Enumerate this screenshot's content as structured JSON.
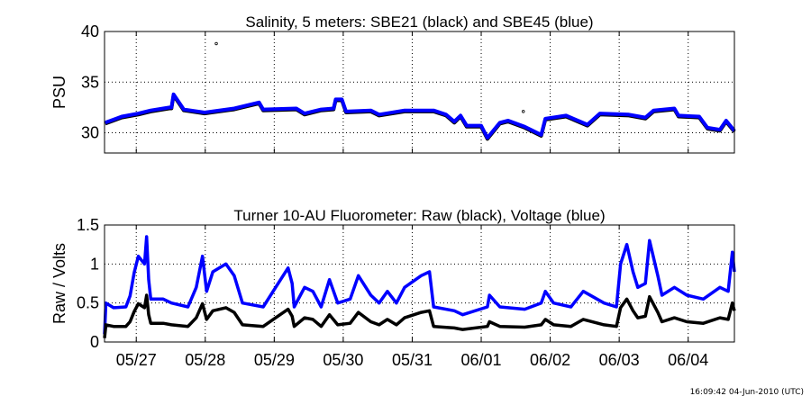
{
  "timestamp": "16:09:42 04-Jun-2010 (UTC)",
  "colors": {
    "black": "#000000",
    "blue": "#0000ff",
    "grid": "#000000"
  },
  "chart_data": [
    {
      "type": "line",
      "title": "Salinity, 5 meters: SBE21 (black) and SBE45 (blue)",
      "ylabel": "PSU",
      "xlabel": "",
      "x_units": "days since 05/27 00:00",
      "xlim": [
        -0.46,
        8.67
      ],
      "ylim": [
        28,
        40
      ],
      "yticks": [
        30,
        35,
        40
      ],
      "ytick_labels": [
        "30",
        "35",
        "40"
      ],
      "xticks": [
        0,
        1,
        2,
        3,
        4,
        5,
        6,
        7,
        8
      ],
      "grid": true,
      "x": [
        -0.45,
        -0.21,
        0.03,
        0.21,
        0.48,
        0.51,
        0.54,
        0.69,
        0.99,
        1.42,
        1.78,
        1.84,
        2.32,
        2.44,
        2.68,
        2.86,
        2.89,
        2.98,
        3.04,
        3.4,
        3.52,
        3.89,
        4.31,
        4.49,
        4.61,
        4.7,
        4.79,
        5.0,
        5.09,
        5.27,
        5.39,
        5.63,
        5.87,
        5.93,
        6.23,
        6.54,
        6.72,
        7.14,
        7.38,
        7.5,
        7.8,
        7.86,
        8.16,
        8.28,
        8.46,
        8.55,
        8.67
      ],
      "series": [
        {
          "name": "SBE21",
          "color": "#000000",
          "values": [
            30.9,
            31.5,
            31.8,
            32.1,
            32.4,
            32.4,
            33.7,
            32.2,
            31.9,
            32.3,
            32.9,
            32.2,
            32.3,
            31.8,
            32.2,
            32.3,
            33.2,
            33.2,
            32.0,
            32.1,
            31.7,
            32.1,
            32.1,
            31.7,
            31.0,
            31.6,
            30.6,
            30.6,
            29.4,
            30.9,
            31.1,
            30.5,
            29.7,
            31.3,
            31.6,
            30.7,
            31.8,
            31.7,
            31.4,
            32.1,
            32.3,
            31.6,
            31.5,
            30.4,
            30.2,
            31.1,
            30.1
          ],
          "outliers": [
            [
              1.16,
              38.8
            ],
            [
              5.61,
              32.1
            ]
          ]
        },
        {
          "name": "SBE45",
          "color": "#0000ff",
          "values": [
            31.0,
            31.6,
            31.9,
            32.2,
            32.5,
            32.5,
            33.8,
            32.3,
            32.0,
            32.4,
            33.0,
            32.3,
            32.4,
            31.9,
            32.3,
            32.4,
            33.3,
            33.3,
            32.1,
            32.2,
            31.8,
            32.2,
            32.2,
            31.8,
            31.1,
            31.7,
            30.7,
            30.7,
            29.5,
            31.0,
            31.2,
            30.6,
            29.8,
            31.4,
            31.7,
            30.8,
            31.9,
            31.8,
            31.5,
            32.2,
            32.4,
            31.7,
            31.6,
            30.5,
            30.3,
            31.2,
            30.2
          ]
        }
      ]
    },
    {
      "type": "line",
      "title": "Turner 10-AU Fluorometer: Raw (black), Voltage (blue)",
      "ylabel": "Raw / Volts",
      "xlabel": "",
      "x_units": "days since 05/27 00:00",
      "xlim": [
        -0.46,
        8.67
      ],
      "ylim": [
        0,
        1.5
      ],
      "yticks": [
        0,
        0.5,
        1,
        1.5
      ],
      "ytick_labels": [
        "0",
        "0.5",
        "1",
        "1.5"
      ],
      "xticks": [
        0,
        1,
        2,
        3,
        4,
        5,
        6,
        7,
        8
      ],
      "xtick_labels": [
        "05/27",
        "05/28",
        "05/29",
        "05/30",
        "05/31",
        "06/01",
        "06/02",
        "06/03",
        "06/04"
      ],
      "grid": true,
      "x": [
        -0.46,
        -0.44,
        -0.33,
        -0.15,
        -0.09,
        -0.03,
        0.03,
        0.12,
        0.15,
        0.18,
        0.21,
        0.39,
        0.51,
        0.75,
        0.87,
        0.96,
        1.02,
        1.11,
        1.3,
        1.42,
        1.54,
        1.84,
        2.02,
        2.2,
        2.26,
        2.29,
        2.44,
        2.56,
        2.68,
        2.8,
        2.92,
        3.1,
        3.22,
        3.4,
        3.52,
        3.64,
        3.77,
        3.89,
        4.13,
        4.25,
        4.31,
        4.61,
        4.73,
        5.09,
        5.12,
        5.27,
        5.63,
        5.87,
        5.93,
        6.05,
        6.3,
        6.48,
        6.78,
        6.96,
        7.02,
        7.11,
        7.2,
        7.27,
        7.38,
        7.44,
        7.56,
        7.62,
        7.8,
        7.98,
        8.22,
        8.46,
        8.58,
        8.64,
        8.67
      ],
      "series": [
        {
          "name": "Voltage",
          "color": "#0000ff",
          "values": [
            0.1,
            0.5,
            0.44,
            0.45,
            0.59,
            0.89,
            1.1,
            1.0,
            1.35,
            0.8,
            0.55,
            0.55,
            0.5,
            0.45,
            0.7,
            1.1,
            0.65,
            0.9,
            1.0,
            0.85,
            0.5,
            0.45,
            0.7,
            0.95,
            0.75,
            0.45,
            0.7,
            0.65,
            0.45,
            0.8,
            0.5,
            0.55,
            0.85,
            0.6,
            0.5,
            0.65,
            0.5,
            0.7,
            0.85,
            0.9,
            0.45,
            0.4,
            0.35,
            0.45,
            0.6,
            0.45,
            0.42,
            0.5,
            0.65,
            0.5,
            0.45,
            0.65,
            0.5,
            0.45,
            1.0,
            1.25,
            0.9,
            0.7,
            0.75,
            1.3,
            0.85,
            0.6,
            0.7,
            0.6,
            0.55,
            0.7,
            0.65,
            1.15,
            0.9
          ]
        },
        {
          "name": "Raw",
          "color": "#000000",
          "values": [
            0.05,
            0.22,
            0.2,
            0.2,
            0.26,
            0.39,
            0.49,
            0.44,
            0.6,
            0.35,
            0.24,
            0.24,
            0.22,
            0.2,
            0.31,
            0.49,
            0.29,
            0.4,
            0.44,
            0.38,
            0.22,
            0.2,
            0.31,
            0.42,
            0.33,
            0.2,
            0.31,
            0.29,
            0.2,
            0.35,
            0.22,
            0.24,
            0.38,
            0.26,
            0.22,
            0.29,
            0.22,
            0.31,
            0.38,
            0.4,
            0.2,
            0.18,
            0.16,
            0.2,
            0.26,
            0.2,
            0.19,
            0.22,
            0.29,
            0.22,
            0.2,
            0.29,
            0.22,
            0.2,
            0.44,
            0.55,
            0.4,
            0.31,
            0.33,
            0.58,
            0.38,
            0.26,
            0.31,
            0.26,
            0.24,
            0.31,
            0.29,
            0.5,
            0.4
          ]
        }
      ]
    }
  ]
}
